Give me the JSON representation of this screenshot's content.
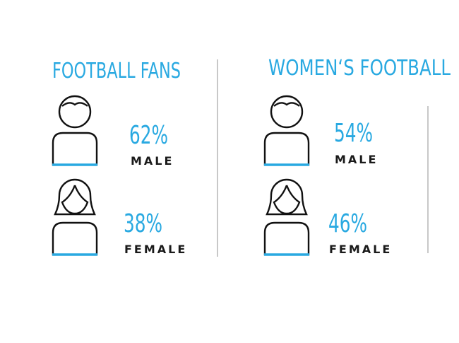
{
  "panels": [
    {
      "title": "FOOTBALL FANS",
      "items": [
        {
          "percent": "62%",
          "label": "MALE"
        },
        {
          "percent": "38%",
          "label": "FEMALE"
        }
      ]
    },
    {
      "title": "WOMEN‘S FOOTBALL",
      "items": [
        {
          "percent": "54%",
          "label": "MALE"
        },
        {
          "percent": "46%",
          "label": "FEMALE"
        }
      ]
    }
  ]
}
